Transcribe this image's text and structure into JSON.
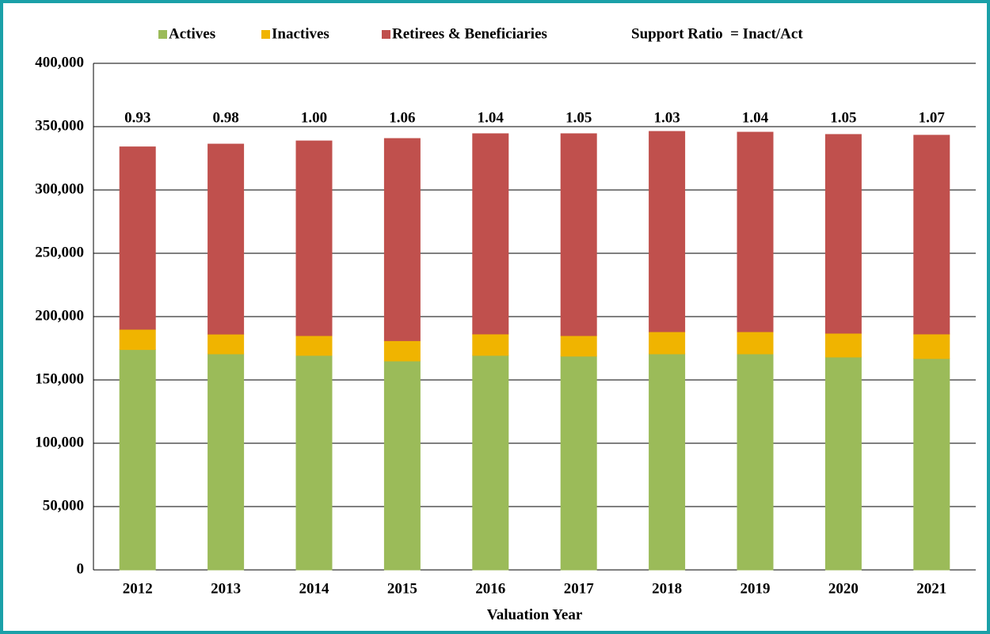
{
  "chart_data": {
    "type": "stacked-bar",
    "x_label": "Valuation Year",
    "categories": [
      "2012",
      "2013",
      "2014",
      "2015",
      "2016",
      "2017",
      "2018",
      "2019",
      "2020",
      "2021"
    ],
    "series": [
      {
        "name": "Actives",
        "color": "#9bbb59",
        "values": [
          174000,
          170600,
          169400,
          165000,
          169400,
          168800,
          170600,
          170600,
          168100,
          166900
        ]
      },
      {
        "name": "Inactives",
        "color": "#f0b400",
        "values": [
          16000,
          15600,
          15600,
          16000,
          16900,
          16200,
          17500,
          17500,
          18800,
          19400
        ]
      },
      {
        "name": "Retirees & Beneficiaries",
        "color": "#c0504d",
        "values": [
          144000,
          150000,
          153700,
          159600,
          158100,
          159400,
          158100,
          157500,
          156900,
          156900
        ]
      }
    ],
    "ratio_series": {
      "name": "Support Ratio  = Inact/Act",
      "values": [
        0.93,
        0.98,
        1.0,
        1.06,
        1.04,
        1.05,
        1.03,
        1.04,
        1.05,
        1.07
      ],
      "value_labels": [
        "0.93",
        "0.98",
        "1.00",
        "1.06",
        "1.04",
        "1.05",
        "1.03",
        "1.04",
        "1.05",
        "1.07"
      ]
    },
    "ylim": [
      0,
      400000
    ],
    "yticks": [
      0,
      {
        "value": 50000,
        "label": "50,000"
      },
      {
        "value": 100000,
        "label": "100,000"
      },
      {
        "value": 150000,
        "label": "150,000"
      },
      {
        "value": 200000,
        "label": "200,000"
      },
      {
        "value": 250000,
        "label": "250,000"
      },
      {
        "value": 300000,
        "label": "300,000"
      },
      {
        "value": 350000,
        "label": "350,000"
      },
      {
        "value": 400000,
        "label": "400,000"
      }
    ],
    "grid": true
  }
}
